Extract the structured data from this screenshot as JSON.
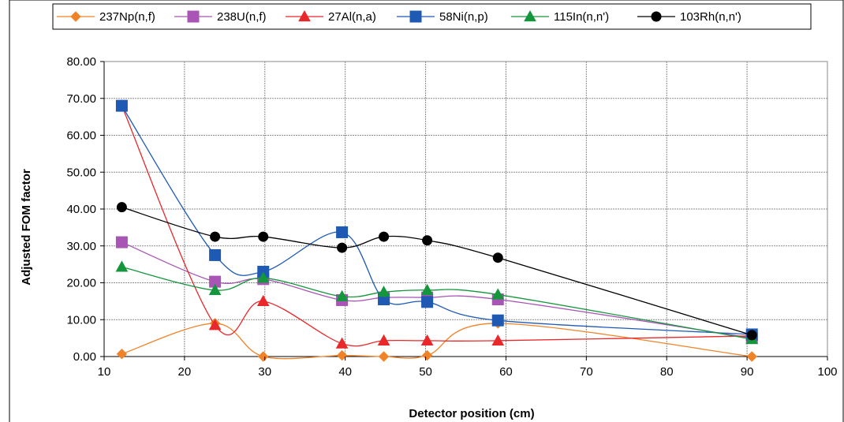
{
  "chart_data": {
    "type": "line",
    "title": "",
    "xlabel": "Detector position (cm)",
    "ylabel": "Adjusted FOM factor",
    "xlim": [
      10,
      100
    ],
    "ylim": [
      0,
      80
    ],
    "x_ticks": [
      "10",
      "20",
      "30",
      "40",
      "50",
      "60",
      "70",
      "80",
      "90",
      "100"
    ],
    "y_ticks": [
      "0.00",
      "10.00",
      "20.00",
      "30.00",
      "40.00",
      "50.00",
      "60.00",
      "70.00",
      "80.00"
    ],
    "grid": true,
    "legend_position": "top",
    "x": [
      12.2,
      23.8,
      29.8,
      39.6,
      44.8,
      50.2,
      59.0,
      90.6
    ],
    "series": [
      {
        "name": "237Np(n,f)",
        "color": "#F08228",
        "marker": "diamond",
        "values": [
          0.7,
          9.0,
          0.0,
          0.3,
          0.0,
          0.3,
          9.0,
          0.0
        ]
      },
      {
        "name": "238U(n,f)",
        "color": "#A855B5",
        "marker": "square",
        "values": [
          31.0,
          20.3,
          21.0,
          15.3,
          16.0,
          16.0,
          15.5,
          5.0
        ]
      },
      {
        "name": "27Al(n,a)",
        "color": "#E8282A",
        "marker": "triangle",
        "values": [
          68.0,
          8.5,
          15.0,
          3.5,
          4.3,
          4.3,
          4.3,
          5.6
        ]
      },
      {
        "name": "58Ni(n,p)",
        "color": "#1E5AB4",
        "marker": "square",
        "values": [
          68.0,
          27.5,
          23.0,
          33.7,
          15.5,
          14.8,
          9.8,
          6.0
        ]
      },
      {
        "name": "115In(n,n')",
        "color": "#14963C",
        "marker": "triangle",
        "values": [
          24.3,
          18.0,
          21.3,
          16.3,
          17.5,
          18.0,
          16.8,
          4.7
        ]
      },
      {
        "name": "103Rh(n,n')",
        "color": "#000000",
        "marker": "circle",
        "values": [
          40.5,
          32.5,
          32.5,
          29.5,
          32.5,
          31.5,
          26.8,
          5.8
        ]
      }
    ]
  }
}
